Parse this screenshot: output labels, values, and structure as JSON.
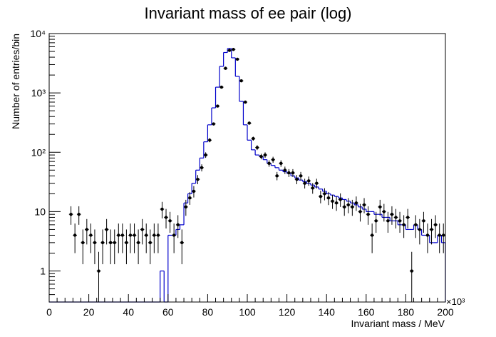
{
  "chart_data": {
    "type": "histogram",
    "title": "Invariant mass of ee pair (log)",
    "xlabel": "Invariant mass / MeV",
    "ylabel": "Number of entries/bin",
    "x_multiplier": "×10³",
    "xlim": [
      0,
      200
    ],
    "ylim": [
      0.3,
      10000
    ],
    "yscale": "log",
    "bin_width": 2,
    "x_ticks": [
      0,
      20,
      40,
      60,
      80,
      100,
      120,
      140,
      160,
      180,
      200
    ],
    "y_ticks": [
      {
        "value": 1,
        "label": "1"
      },
      {
        "value": 10,
        "label": "10"
      },
      {
        "value": 100,
        "label": "10²"
      },
      {
        "value": 1000,
        "label": "10³"
      },
      {
        "value": 10000,
        "label": "10⁴"
      }
    ],
    "series": [
      {
        "kind": "mc-histogram",
        "color": "#0000cc",
        "bin_edges_start": 56,
        "values": [
          1,
          0,
          4,
          4,
          5,
          6,
          14,
          20,
          30,
          50,
          80,
          150,
          290,
          560,
          1250,
          2800,
          4800,
          5600,
          3900,
          1900,
          720,
          290,
          160,
          110,
          90,
          85,
          75,
          65,
          60,
          55,
          50,
          47,
          44,
          40,
          37,
          34,
          32,
          30,
          28,
          26,
          24,
          22,
          20,
          19,
          18,
          17,
          16,
          15,
          14,
          13,
          12,
          11,
          10,
          10,
          9,
          9,
          8,
          8,
          7,
          7,
          6,
          6,
          5,
          5,
          6,
          5,
          4,
          4,
          3,
          3,
          4,
          3
        ]
      },
      {
        "kind": "data-points",
        "color": "#000000",
        "x": [
          11,
          13,
          15,
          17,
          19,
          21,
          23,
          25,
          27,
          29,
          31,
          33,
          35,
          37,
          39,
          41,
          43,
          45,
          47,
          49,
          51,
          53,
          55,
          57,
          59,
          61,
          63,
          65,
          67,
          69,
          71,
          73,
          75,
          77,
          79,
          81,
          83,
          85,
          87,
          89,
          91,
          93,
          95,
          97,
          99,
          101,
          103,
          105,
          107,
          109,
          111,
          113,
          115,
          117,
          119,
          121,
          123,
          125,
          127,
          129,
          131,
          133,
          135,
          137,
          139,
          141,
          143,
          145,
          147,
          149,
          151,
          153,
          155,
          157,
          159,
          161,
          163,
          165,
          167,
          169,
          171,
          173,
          175,
          177,
          179,
          181,
          183,
          185,
          187,
          189,
          191,
          193,
          195,
          197,
          199
        ],
        "y": [
          9,
          4,
          9,
          3,
          5,
          4,
          3,
          1,
          3,
          5,
          3,
          3,
          4,
          4,
          3,
          4,
          4,
          3,
          5,
          4,
          3,
          4,
          4,
          11,
          8,
          7,
          4,
          6,
          3,
          12,
          17,
          22,
          35,
          55,
          90,
          160,
          300,
          600,
          1250,
          2600,
          5200,
          5400,
          3700,
          1600,
          700,
          310,
          170,
          120,
          85,
          90,
          65,
          75,
          40,
          65,
          50,
          45,
          45,
          35,
          40,
          30,
          33,
          25,
          30,
          18,
          20,
          17,
          15,
          14,
          16,
          12,
          13,
          12,
          14,
          10,
          13,
          9,
          4,
          7,
          12,
          10,
          7,
          9,
          8,
          7,
          6,
          8,
          1,
          6,
          5,
          7,
          4,
          5,
          6,
          4,
          4
        ],
        "err_low": [
          3,
          2,
          3,
          1.7,
          2.2,
          2,
          1.7,
          0.8,
          1.7,
          2.2,
          1.7,
          1.7,
          2,
          2,
          1.7,
          2,
          2,
          1.7,
          2.2,
          2,
          1.7,
          2,
          2,
          3.3,
          2.8,
          2.6,
          2,
          2.4,
          1.7,
          3.5,
          4,
          4.7,
          6,
          7.4,
          9.5,
          12.6,
          17,
          24,
          35,
          51,
          72,
          73,
          61,
          40,
          26,
          18,
          13,
          11,
          9,
          9.5,
          8,
          8.7,
          6.3,
          8,
          7,
          6.7,
          6.7,
          6,
          6.3,
          5.5,
          5.7,
          5,
          5.5,
          4.2,
          4.5,
          4.1,
          3.9,
          3.7,
          4,
          3.5,
          3.6,
          3.5,
          3.7,
          3.2,
          3.6,
          3,
          2,
          2.6,
          3.5,
          3.2,
          2.6,
          3,
          2.8,
          2.6,
          2.4,
          2.8,
          0.8,
          2.4,
          2.2,
          2.6,
          2,
          2.2,
          2.4,
          2,
          2
        ]
      }
    ]
  }
}
